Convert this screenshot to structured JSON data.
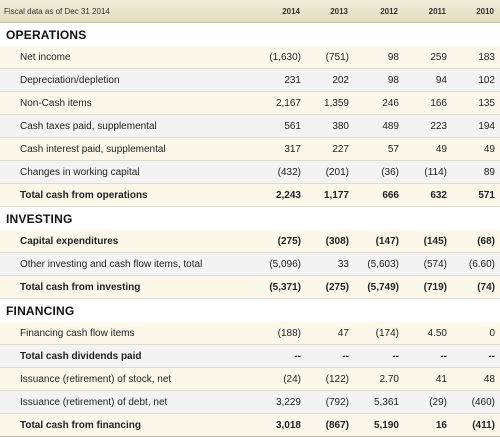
{
  "header": {
    "label": "Fiscal data as of Dec 31 2014",
    "years": [
      "2014",
      "2013",
      "2012",
      "2011",
      "2010"
    ]
  },
  "sections": [
    {
      "title": "OPERATIONS",
      "rows": [
        {
          "label": "Net income",
          "values": [
            "(1,630)",
            "(751)",
            "98",
            "259",
            "183"
          ],
          "style": "alt"
        },
        {
          "label": "Depreciation/depletion",
          "values": [
            "231",
            "202",
            "98",
            "94",
            "102"
          ],
          "style": "plain"
        },
        {
          "label": "Non-Cash items",
          "values": [
            "2,167",
            "1,359",
            "246",
            "166",
            "135"
          ],
          "style": "alt"
        },
        {
          "label": "Cash taxes paid, supplemental",
          "values": [
            "561",
            "380",
            "489",
            "223",
            "194"
          ],
          "style": "plain"
        },
        {
          "label": "Cash interest paid, supplemental",
          "values": [
            "317",
            "227",
            "57",
            "49",
            "49"
          ],
          "style": "alt"
        },
        {
          "label": "Changes in working capital",
          "values": [
            "(432)",
            "(201)",
            "(36)",
            "(114)",
            "89"
          ],
          "style": "plain"
        },
        {
          "label": "Total cash from operations",
          "values": [
            "2,243",
            "1,177",
            "666",
            "632",
            "571"
          ],
          "style": "alt total"
        }
      ]
    },
    {
      "title": "INVESTING",
      "rows": [
        {
          "label": "Capital expenditures",
          "values": [
            "(275)",
            "(308)",
            "(147)",
            "(145)",
            "(68)"
          ],
          "style": "alt bold"
        },
        {
          "label": "Other investing and cash flow items, total",
          "values": [
            "(5,096)",
            "33",
            "(5,603)",
            "(574)",
            "(6.60)"
          ],
          "style": "plain"
        },
        {
          "label": "Total cash from investing",
          "values": [
            "(5,371)",
            "(275)",
            "(5,749)",
            "(719)",
            "(74)"
          ],
          "style": "alt total"
        }
      ]
    },
    {
      "title": "FINANCING",
      "rows": [
        {
          "label": "Financing cash flow items",
          "values": [
            "(188)",
            "47",
            "(174)",
            "4.50",
            "0"
          ],
          "style": "alt"
        },
        {
          "label": "Total cash dividends paid",
          "values": [
            "--",
            "--",
            "--",
            "--",
            "--"
          ],
          "style": "plain bold"
        },
        {
          "label": "Issuance (retirement) of stock, net",
          "values": [
            "(24)",
            "(122)",
            "2.70",
            "41",
            "48"
          ],
          "style": "alt"
        },
        {
          "label": "Issuance (retirement) of debt, net",
          "values": [
            "3,229",
            "(792)",
            "5,361",
            "(29)",
            "(460)"
          ],
          "style": "plain"
        },
        {
          "label": "Total cash from financing",
          "values": [
            "3,018",
            "(867)",
            "5,190",
            "16",
            "(411)"
          ],
          "style": "alt total last"
        }
      ]
    }
  ]
}
